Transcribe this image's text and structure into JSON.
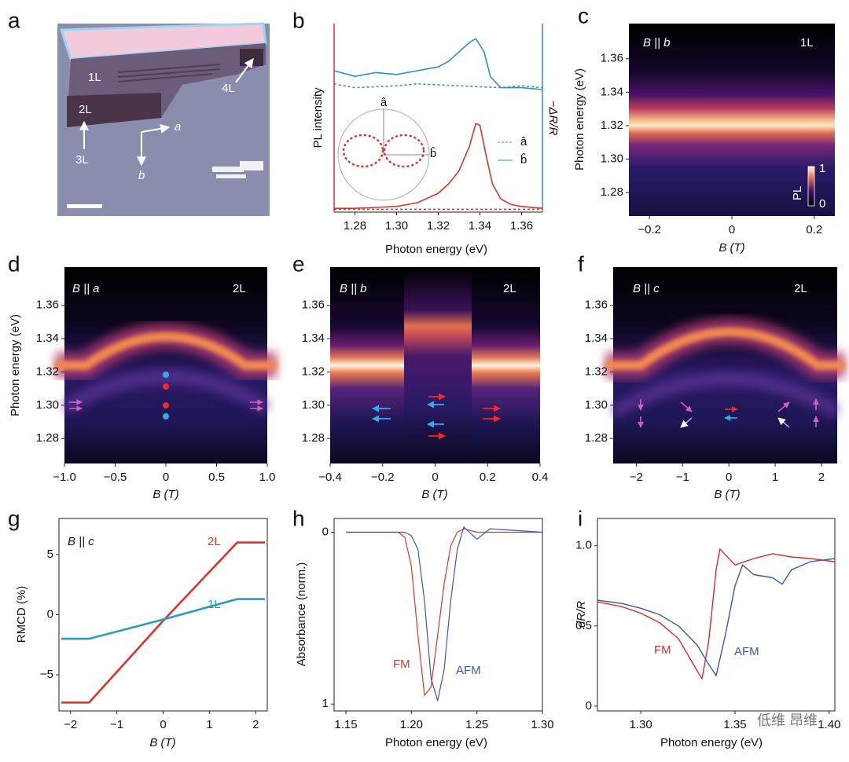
{
  "chart_data": [
    {
      "type": "image",
      "label": "a",
      "annotations": [
        "1L",
        "2L",
        "3L",
        "4L"
      ],
      "axes": [
        "a",
        "b"
      ]
    },
    {
      "type": "line",
      "label": "b",
      "xlabel": "Photon energy (eV)",
      "ylabel": "PL intensity",
      "y2label": "−ΔR/R",
      "xlim": [
        1.27,
        1.37
      ],
      "xticks": [
        1.28,
        {
          "value": 1.3,
          "label": "1.30"
        },
        1.32,
        1.34,
        1.36
      ],
      "ylim": [
        0,
        1
      ],
      "y2lim": [
        0,
        1
      ],
      "inset_labels": [
        "â",
        "b̂"
      ],
      "series": [
        {
          "color": "#d8352a",
          "dash": true,
          "x": [
            1.27,
            1.37
          ],
          "values": [
            0.015,
            0.015
          ]
        },
        {
          "color": "#d8352a",
          "dash": false,
          "x": [
            1.27,
            1.28,
            1.29,
            1.3,
            1.31,
            1.32,
            1.325,
            1.33,
            1.335,
            1.338,
            1.34,
            1.343,
            1.346,
            1.35,
            1.355,
            1.36,
            1.37
          ],
          "values": [
            0.02,
            0.02,
            0.025,
            0.03,
            0.05,
            0.1,
            0.15,
            0.22,
            0.35,
            0.47,
            0.46,
            0.3,
            0.15,
            0.07,
            0.04,
            0.03,
            0.02
          ]
        },
        {
          "name": "â",
          "color": "#2f8fc6",
          "dash": true,
          "axis": "y2",
          "x": [
            1.27,
            1.28,
            1.3,
            1.31,
            1.33,
            1.35,
            1.36,
            1.37
          ],
          "values": [
            0.68,
            0.66,
            0.67,
            0.68,
            0.67,
            0.66,
            0.67,
            0.66
          ]
        },
        {
          "name": "b̂",
          "color": "#2f8fc6",
          "dash": false,
          "axis": "y2",
          "x": [
            1.27,
            1.28,
            1.29,
            1.3,
            1.31,
            1.32,
            1.325,
            1.33,
            1.335,
            1.338,
            1.342,
            1.345,
            1.35,
            1.36,
            1.37
          ],
          "values": [
            0.75,
            0.72,
            0.74,
            0.73,
            0.75,
            0.77,
            0.8,
            0.85,
            0.9,
            0.92,
            0.85,
            0.72,
            0.66,
            0.66,
            0.65
          ]
        }
      ]
    },
    {
      "type": "heatmap",
      "label": "c",
      "field": "B || b",
      "layer": "1L",
      "xlabel": "B (T)",
      "ylabel": "Photon energy (eV)",
      "xlim": [
        -0.25,
        0.25
      ],
      "xticks": [
        {
          "value": -0.2,
          "label": "−0.2"
        },
        0,
        0.2
      ],
      "ylim": [
        1.266,
        1.381
      ],
      "yticks": [
        1.28,
        {
          "value": 1.3,
          "label": "1.30"
        },
        1.32,
        1.34,
        1.36
      ],
      "colorbar": {
        "label": "PL",
        "ticks": [
          1,
          0
        ]
      }
    },
    {
      "type": "heatmap",
      "label": "d",
      "field": "B || a",
      "layer": "2L",
      "xlabel": "B (T)",
      "ylabel": "Photon energy (eV)",
      "xlim": [
        -1,
        1
      ],
      "xticks": [
        {
          "value": -1,
          "label": "−1.0"
        },
        {
          "value": -0.5,
          "label": "−0.5"
        },
        0,
        0.5,
        {
          "value": 1,
          "label": "1.0"
        }
      ],
      "ylim": [
        1.265,
        1.383
      ],
      "yticks": [
        1.28,
        {
          "value": 1.3,
          "label": "1.30"
        },
        1.32,
        1.34,
        1.36
      ]
    },
    {
      "type": "heatmap",
      "label": "e",
      "field": "B || b",
      "layer": "2L",
      "xlabel": "B (T)",
      "xlim": [
        -0.4,
        0.4
      ],
      "xticks": [
        {
          "value": -0.4,
          "label": "−0.4"
        },
        {
          "value": -0.2,
          "label": "−0.2"
        },
        0,
        0.2,
        0.4
      ],
      "ylim": [
        1.265,
        1.383
      ],
      "yticks": [
        1.28,
        {
          "value": 1.3,
          "label": "1.30"
        },
        1.32,
        1.34,
        1.36
      ]
    },
    {
      "type": "heatmap",
      "label": "f",
      "field": "B || c",
      "layer": "2L",
      "xlabel": "B (T)",
      "xlim": [
        -2.5,
        2.34
      ],
      "xticks": [
        {
          "value": -2,
          "label": "−2"
        },
        {
          "value": -1,
          "label": "−1"
        },
        0,
        1,
        2
      ],
      "ylim": [
        1.265,
        1.383
      ],
      "yticks": [
        1.28,
        {
          "value": 1.3,
          "label": "1.30"
        },
        1.32,
        1.34,
        1.36
      ]
    },
    {
      "type": "line",
      "label": "g",
      "field": "B || c",
      "xlabel": "B (T)",
      "ylabel": "RMCD (%)",
      "xlim": [
        -2.25,
        2.25
      ],
      "xticks": [
        {
          "value": -2,
          "label": "−2"
        },
        {
          "value": -1,
          "label": "−1"
        },
        0,
        1,
        2
      ],
      "ylim": [
        -8,
        8
      ],
      "yticks": [
        {
          "value": -5,
          "label": "−5"
        },
        0,
        5
      ],
      "series": [
        {
          "name": "2L",
          "color": "#d8352a",
          "x": [
            -2.2,
            -1.6,
            0,
            1.6,
            2.2
          ],
          "values": [
            -7.3,
            -7.3,
            -0.5,
            6,
            6
          ]
        },
        {
          "name": "1L",
          "color": "#2a9bc8",
          "x": [
            -2.2,
            -1.6,
            0,
            1.6,
            2.2
          ],
          "values": [
            -2,
            -2,
            -0.4,
            1.3,
            1.3
          ]
        }
      ]
    },
    {
      "type": "line",
      "label": "h",
      "xlabel": "Photon energy (eV)",
      "ylabel": "Absorbance (norm.)",
      "xlim": [
        1.141,
        1.3
      ],
      "xticks": [
        1.15,
        {
          "value": 1.2,
          "label": "1.20"
        },
        1.25,
        {
          "value": 1.3,
          "label": "1.30"
        }
      ],
      "ylim": [
        1.04,
        -0.08
      ],
      "yticks": [
        0,
        1
      ],
      "series": [
        {
          "name": "FM",
          "color": "#d8352a",
          "x": [
            1.15,
            1.19,
            1.195,
            1.2,
            1.205,
            1.21,
            1.215,
            1.22,
            1.225,
            1.23,
            1.235,
            1.24,
            1.25,
            1.26,
            1.3
          ],
          "values": [
            0,
            0,
            0.03,
            0.2,
            0.6,
            0.95,
            0.9,
            0.6,
            0.3,
            0.08,
            0,
            -0.02,
            0,
            0,
            0
          ]
        },
        {
          "name": "AFM",
          "color": "#3d55b0",
          "x": [
            1.15,
            1.19,
            1.195,
            1.2,
            1.205,
            1.21,
            1.215,
            1.22,
            1.225,
            1.23,
            1.235,
            1.24,
            1.25,
            1.26,
            1.3
          ],
          "values": [
            0,
            0,
            0,
            0.02,
            0.1,
            0.4,
            0.85,
            0.98,
            0.8,
            0.4,
            0.1,
            -0.03,
            0.04,
            -0.02,
            0
          ]
        }
      ]
    },
    {
      "type": "line",
      "label": "i",
      "xlabel": "Photon energy (eV)",
      "ylabel": "dR/R",
      "watermark": "低维 昂维",
      "xlim": [
        1.277,
        1.403
      ],
      "xticks": [
        {
          "value": 1.3,
          "label": "1.30"
        },
        1.35,
        {
          "value": 1.4,
          "label": "1.40"
        }
      ],
      "ylim": [
        -0.03,
        1.17
      ],
      "yticks": [
        0,
        0.5,
        {
          "value": 1,
          "label": "1.0"
        }
      ],
      "series": [
        {
          "name": "FM",
          "color": "#e0282a",
          "x": [
            1.277,
            1.29,
            1.3,
            1.31,
            1.32,
            1.33,
            1.3325,
            1.336,
            1.34,
            1.342,
            1.35,
            1.36,
            1.37,
            1.38,
            1.39,
            1.403
          ],
          "values": [
            0.65,
            0.62,
            0.58,
            0.52,
            0.42,
            0.22,
            0.17,
            0.4,
            0.85,
            0.98,
            0.88,
            0.92,
            0.95,
            0.93,
            0.92,
            0.9
          ]
        },
        {
          "name": "AFM",
          "color": "#3d55b0",
          "x": [
            1.277,
            1.29,
            1.3,
            1.31,
            1.32,
            1.33,
            1.335,
            1.34,
            1.345,
            1.35,
            1.354,
            1.36,
            1.37,
            1.375,
            1.38,
            1.39,
            1.403
          ],
          "values": [
            0.66,
            0.64,
            0.61,
            0.57,
            0.5,
            0.38,
            0.28,
            0.19,
            0.45,
            0.75,
            0.88,
            0.82,
            0.8,
            0.76,
            0.85,
            0.9,
            0.92
          ]
        }
      ]
    }
  ]
}
